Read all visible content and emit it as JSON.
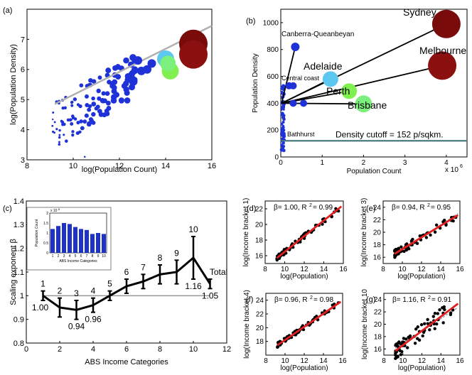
{
  "chart_data": [
    {
      "panel": "(a)",
      "type": "scatter",
      "xlabel": "log(Population Count)",
      "ylabel": "log(Population Density)",
      "xlim": [
        8,
        16
      ],
      "ylim": [
        3,
        8
      ],
      "xticks": [
        "8",
        "10",
        "12",
        "14",
        "16"
      ],
      "yticks": [
        "3",
        "4",
        "5",
        "6",
        "7"
      ],
      "fit_line": {
        "x": [
          9.2,
          16.0
        ],
        "y": [
          4.85,
          7.45
        ]
      },
      "big_points": [
        {
          "x": 15.2,
          "y": 6.85,
          "color": "#7a0b0b"
        },
        {
          "x": 15.2,
          "y": 6.5,
          "color": "#8b1010"
        },
        {
          "x": 14.0,
          "y": 6.35,
          "color": "#5cc8f0"
        },
        {
          "x": 14.2,
          "y": 5.95,
          "color": "#80ef50"
        },
        {
          "x": 14.1,
          "y": 6.2,
          "color": "#7cf07c"
        },
        {
          "x": 12.8,
          "y": 6.3,
          "color": "#1e32d8"
        },
        {
          "x": 13.2,
          "y": 6.0,
          "color": "#1e32d8"
        },
        {
          "x": 12.95,
          "y": 5.95,
          "color": "#1e32d8"
        },
        {
          "x": 12.6,
          "y": 5.6,
          "color": "#1e32d8"
        },
        {
          "x": 13.4,
          "y": 6.2,
          "color": "#1e32d8"
        }
      ]
    },
    {
      "panel": "(b)",
      "type": "scatter",
      "xlabel": "Population Count",
      "ylabel": "Population Density",
      "xlim": [
        0,
        4.5
      ],
      "ylim": [
        0,
        1100
      ],
      "xticks": [
        "0",
        "1",
        "2",
        "3",
        "4"
      ],
      "yticks": [
        "0",
        "200",
        "400",
        "600",
        "800",
        "1000"
      ],
      "exponent_label": "x 10",
      "exponent_power": "6",
      "cutoff": {
        "y": 120,
        "label": "Density cutoff = 152 p/sqkm."
      },
      "cities": [
        {
          "name": "Sydney",
          "x": 4.0,
          "y": 990,
          "color": "#7a0b0b",
          "r": 20
        },
        {
          "name": "Melbourne",
          "x": 3.9,
          "y": 680,
          "color": "#8b1010",
          "r": 20
        },
        {
          "name": "Canberra-Queanbeyan",
          "x": 0.35,
          "y": 820,
          "color": "#1e32d8",
          "r": 6
        },
        {
          "name": "Adelaide",
          "x": 1.2,
          "y": 580,
          "color": "#5cc8f0",
          "r": 11
        },
        {
          "name": "Central coast",
          "x": 0.3,
          "y": 530,
          "color": "#1e32d8",
          "r": 5
        },
        {
          "name": "Perth",
          "x": 1.65,
          "y": 490,
          "color": "#80ef50",
          "r": 11
        },
        {
          "name": "Brisbane",
          "x": 2.0,
          "y": 395,
          "color": "#7cf07c",
          "r": 12
        },
        {
          "name": "Bathhurst",
          "x": 0.05,
          "y": 170,
          "color": "#1e32d8",
          "r": 4
        }
      ]
    },
    {
      "panel": "(c)",
      "type": "line",
      "xlabel": "ABS Income Categories",
      "ylabel": "Scaling exponent β",
      "xlim": [
        0,
        12
      ],
      "ylim": [
        0.8,
        1.4
      ],
      "xticks": [
        "0",
        "2",
        "4",
        "6",
        "8",
        "10",
        "12"
      ],
      "yticks": [
        "0.8",
        "0.9",
        "1",
        "1.1",
        "1.2",
        "1.3",
        "1.4"
      ],
      "x": [
        1,
        2,
        3,
        4,
        5,
        6,
        7,
        8,
        9,
        10,
        11
      ],
      "values": [
        1.0,
        0.95,
        0.94,
        0.96,
        1.0,
        1.04,
        1.06,
        1.09,
        1.1,
        1.16,
        1.05
      ],
      "errors": [
        0.02,
        0.04,
        0.04,
        0.03,
        0.02,
        0.03,
        0.03,
        0.04,
        0.05,
        0.09,
        0.02
      ],
      "point_labels": [
        "1",
        "2",
        "3",
        "4",
        "5",
        "6",
        "7",
        "8",
        "9",
        "10",
        "Total"
      ],
      "value_labels": [
        {
          "i": 0,
          "text": "1.00"
        },
        {
          "i": 2,
          "text": "0.94"
        },
        {
          "i": 3,
          "text": "0.96"
        },
        {
          "i": 9,
          "text": "1.16"
        },
        {
          "i": 10,
          "text": "1.05"
        }
      ],
      "inset": {
        "type": "bar",
        "ylabel": "Population Count",
        "xlabel": "ABS Income Categories",
        "exponent": "x 10",
        "exponent_power": "6",
        "categories": [
          "1",
          "2",
          "3",
          "4",
          "5",
          "6",
          "7",
          "8",
          "9",
          "10"
        ],
        "values": [
          1.2,
          1.35,
          1.5,
          1.45,
          1.3,
          1.2,
          1.15,
          0.95,
          1.0,
          0.95
        ],
        "ylim": [
          0,
          2
        ],
        "yticks": [
          "0",
          "0.5",
          "1",
          "1.5",
          "2"
        ]
      }
    },
    {
      "panel": "(d)",
      "type": "scatter",
      "ylabel": "log(Income bracket 1)",
      "xlabel": "log(Population)",
      "annotation": "β= 1.00, R",
      "annotation_tail": "= 0.99",
      "xlim": [
        8,
        16
      ],
      "ylim": [
        15,
        23
      ],
      "xticks": [
        "8",
        "10",
        "12",
        "14",
        "16"
      ],
      "yticks": [
        "16",
        "18",
        "20",
        "22"
      ],
      "slope": 1.0,
      "intercept": 6.5
    },
    {
      "panel": "(e)",
      "type": "scatter",
      "ylabel": "log(Income bracket 3)",
      "xlabel": "log(Population)",
      "annotation": "β= 0.94, R",
      "annotation_tail": "= 0.95",
      "xlim": [
        8,
        16
      ],
      "ylim": [
        15,
        25
      ],
      "xticks": [
        "8",
        "10",
        "12",
        "14",
        "16"
      ],
      "yticks": [
        "16",
        "18",
        "20",
        "22",
        "24"
      ],
      "slope": 0.94,
      "intercept": 7.9
    },
    {
      "panel": "(f)",
      "type": "scatter",
      "ylabel": "log(Income bracket 4)",
      "xlabel": "log(Population)",
      "annotation": "β= 0.96, R",
      "annotation_tail": "= 0.98",
      "xlim": [
        8,
        16
      ],
      "ylim": [
        16,
        25
      ],
      "xticks": [
        "8",
        "10",
        "12",
        "14",
        "16"
      ],
      "yticks": [
        "18",
        "20",
        "22",
        "24"
      ],
      "slope": 0.96,
      "intercept": 8.6
    },
    {
      "panel": "(g)",
      "type": "scatter",
      "ylabel": "log(Income bracket 10",
      "xlabel": "log(Population)",
      "annotation": "β= 1.16, R",
      "annotation_tail": "= 0.91",
      "xlim": [
        8,
        16
      ],
      "ylim": [
        15,
        25
      ],
      "xticks": [
        "8",
        "10",
        "12",
        "14",
        "16"
      ],
      "yticks": [
        "16",
        "18",
        "20",
        "22",
        "24"
      ],
      "slope": 1.16,
      "intercept": 5.0
    }
  ]
}
